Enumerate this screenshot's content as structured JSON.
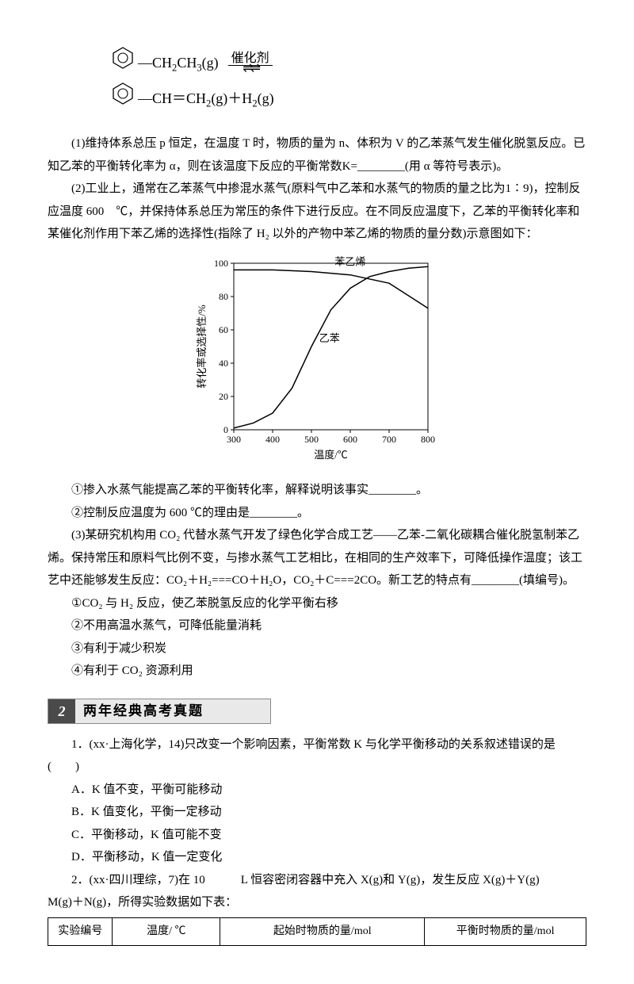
{
  "equation": {
    "catalyst_label": "催化剂",
    "line1": "—CH₂CH₃(g)",
    "line2": "—CH＝CH₂(g)＋H₂(g)"
  },
  "para1": "(1)维持体系总压 p 恒定，在温度 T 时，物质的量为 n、体积为 V 的乙苯蒸气发生催化脱氢反应。已知乙苯的平衡转化率为 α，则在该温度下反应的平衡常数K=________(用 α 等符号表示)。",
  "para2": "(2)工业上，通常在乙苯蒸气中掺混水蒸气(原料气中乙苯和水蒸气的物质的量之比为1∶9)，控制反应温度 600　℃，并保持体系总压为常压的条件下进行反应。在不同反应温度下，乙苯的平衡转化率和某催化剂作用下苯乙烯的选择性(指除了 H₂ 以外的产物中苯乙烯的物质的量分数)示意图如下：",
  "chart": {
    "type": "line",
    "xlabel": "温度/℃",
    "ylabel": "转化率或选择性/%",
    "xlim": [
      300,
      800
    ],
    "ylim": [
      0,
      100
    ],
    "xticks": [
      300,
      400,
      500,
      600,
      700,
      800
    ],
    "yticks": [
      0,
      20,
      40,
      60,
      80,
      100
    ],
    "series": [
      {
        "name": "苯乙烯",
        "pts": [
          [
            300,
            96
          ],
          [
            400,
            96
          ],
          [
            500,
            95
          ],
          [
            600,
            93
          ],
          [
            700,
            88
          ],
          [
            800,
            73
          ]
        ]
      },
      {
        "name": "乙苯",
        "pts": [
          [
            300,
            1
          ],
          [
            350,
            4
          ],
          [
            400,
            10
          ],
          [
            450,
            25
          ],
          [
            500,
            50
          ],
          [
            550,
            72
          ],
          [
            600,
            85
          ],
          [
            650,
            92
          ],
          [
            700,
            95
          ],
          [
            750,
            97
          ],
          [
            800,
            98
          ]
        ]
      }
    ],
    "label_positions": {
      "苯乙烯": [
        560,
        96
      ],
      "乙苯": [
        520,
        50
      ]
    },
    "axis_color": "#000",
    "line_color": "#000",
    "line_width": 1.5,
    "background": "#ffffff",
    "font_size_axis": 12
  },
  "para3": "①掺入水蒸气能提高乙苯的平衡转化率，解释说明该事实________。",
  "para4": "②控制反应温度为 600 ℃的理由是________。",
  "para5": "(3)某研究机构用 CO₂ 代替水蒸气开发了绿色化学合成工艺——乙苯-二氧化碳耦合催化脱氢制苯乙烯。保持常压和原料气比例不变，与掺水蒸气工艺相比，在相同的生产效率下，可降低操作温度；该工艺中还能够发生反应：CO₂＋H₂===CO＋H₂O，CO₂＋C===2CO。新工艺的特点有________(填编号)。",
  "opts": {
    "o1": "①CO₂ 与 H₂ 反应，使乙苯脱氢反应的化学平衡右移",
    "o2": "②不用高温水蒸气，可降低能量消耗",
    "o3": "③有利于减少积炭",
    "o4": "④有利于 CO₂ 资源利用"
  },
  "heading": {
    "num": "2",
    "text": "两年经典高考真题"
  },
  "q1": {
    "stem": "1．(xx·上海化学，14)只改变一个影响因素，平衡常数 K 与化学平衡移动的关系叙述错误的是(　　)",
    "a": "A．K 值不变，平衡可能移动",
    "b": "B．K 值变化，平衡一定移动",
    "c": "C．平衡移动，K 值可能不变",
    "d": "D．平衡移动，K 值一定变化"
  },
  "q2": {
    "stem": "2．(xx·四川理综，7)在 10　　　L 恒容密闭容器中充入 X(g)和 Y(g)，发生反应 X(g)＋Y(g)　　M(g)＋N(g)，所得实验数据如下表：",
    "table": {
      "headers": [
        "实验编号",
        "温度/ ℃",
        "起始时物质的量/mol",
        "平衡时物质的量/mol"
      ],
      "col_widths": [
        "12%",
        "20%",
        "38%",
        "30%"
      ]
    }
  }
}
